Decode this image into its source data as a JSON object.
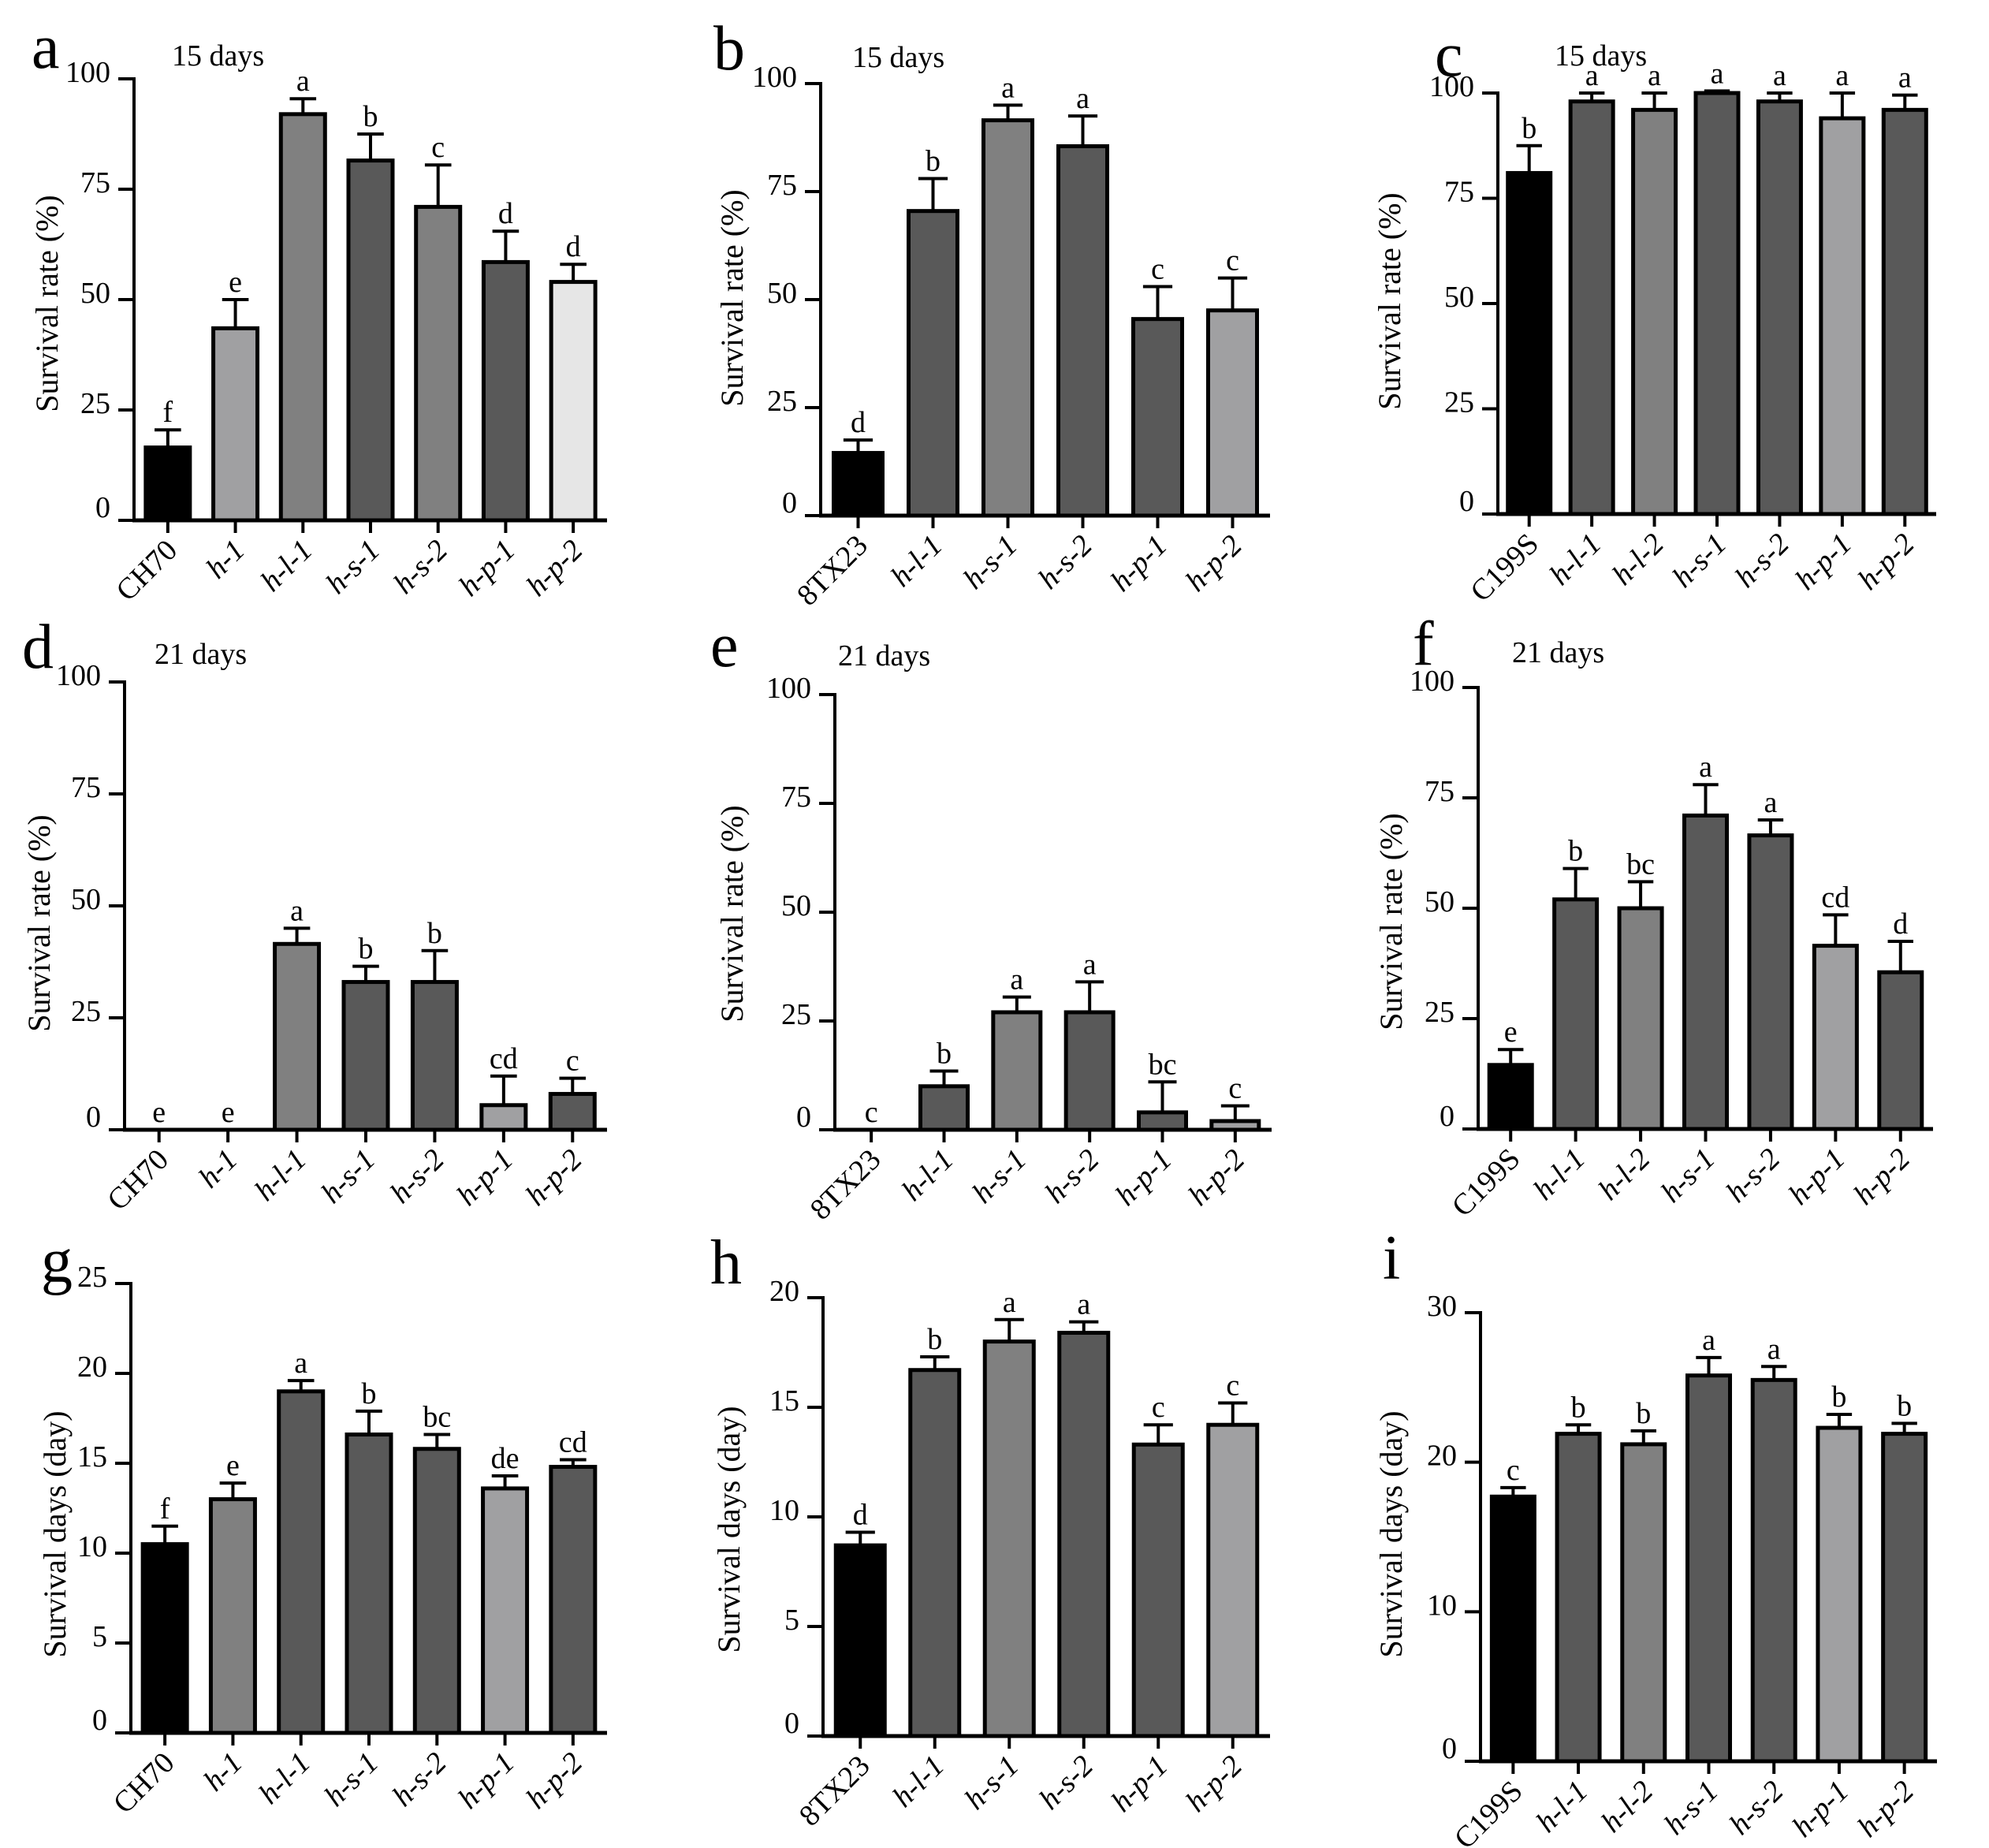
{
  "figure": {
    "panels": [
      {
        "letter": "a",
        "title": "15 days",
        "ylabel": "Survival rate (%)"
      },
      {
        "letter": "b",
        "title": "15 days",
        "ylabel": "Survival rate (%)"
      },
      {
        "letter": "c",
        "title": "15 days",
        "ylabel": "Survival rate (%)"
      },
      {
        "letter": "d",
        "title": "21 days",
        "ylabel": "Survival rate  (%)"
      },
      {
        "letter": "e",
        "title": "21 days",
        "ylabel": "Survival rate (%)"
      },
      {
        "letter": "f",
        "title": "21 days",
        "ylabel": "Survival rate (%)"
      },
      {
        "letter": "g",
        "title": "",
        "ylabel": "Survival days (day)"
      },
      {
        "letter": "h",
        "title": "",
        "ylabel": "Survival days (day)"
      },
      {
        "letter": "i",
        "title": "",
        "ylabel": "Survival days (day)"
      }
    ]
  },
  "colors": {
    "black": "#000000",
    "dark": "#595959",
    "mid": "#808080",
    "light": "#a0a0a2",
    "pale": "#e6e6e6"
  },
  "chart_data": [
    {
      "type": "bar",
      "title": "15 days",
      "ylabel": "Survival rate (%)",
      "ylim": [
        0,
        100
      ],
      "yticks": [
        0,
        25,
        50,
        75,
        100
      ],
      "categories": [
        "CH70",
        "h-1",
        "h-l-1",
        "h-s-1",
        "h-s-2",
        "h-p-1",
        "h-p-2"
      ],
      "values": [
        16.5,
        43.5,
        92,
        81.5,
        71,
        58.5,
        54
      ],
      "errors": [
        4,
        6.5,
        3.5,
        6,
        9.5,
        7,
        4
      ],
      "letters": [
        "f",
        "e",
        "a",
        "b",
        "c",
        "d",
        "d"
      ],
      "fills": [
        "black",
        "light",
        "mid",
        "dark",
        "mid",
        "dark",
        "pale"
      ]
    },
    {
      "type": "bar",
      "title": "15 days",
      "ylabel": "Survival rate (%)",
      "ylim": [
        0,
        100
      ],
      "yticks": [
        0,
        25,
        50,
        75,
        100
      ],
      "categories": [
        "8TX23",
        "h-l-1",
        "h-s-1",
        "h-s-2",
        "h-p-1",
        "h-p-2"
      ],
      "values": [
        14.5,
        70.5,
        91.5,
        85.5,
        45.5,
        47.5
      ],
      "errors": [
        3,
        7.5,
        3.5,
        7,
        7.5,
        7.5
      ],
      "letters": [
        "d",
        "b",
        "a",
        "a",
        "c",
        "c"
      ],
      "fills": [
        "black",
        "dark",
        "mid",
        "dark",
        "dark",
        "light"
      ]
    },
    {
      "type": "bar",
      "title": "15 days",
      "ylabel": "Survival rate (%)",
      "ylim": [
        0,
        100
      ],
      "yticks": [
        0,
        25,
        50,
        75,
        100
      ],
      "categories": [
        "C199S",
        "h-l-1",
        "h-l-2",
        "h-s-1",
        "h-s-2",
        "h-p-1",
        "h-p-2"
      ],
      "values": [
        81,
        98,
        96,
        100,
        98,
        94,
        96
      ],
      "errors": [
        6.5,
        2,
        4,
        0.5,
        2,
        6,
        3.5
      ],
      "letters": [
        "b",
        "a",
        "a",
        "a",
        "a",
        "a",
        "a"
      ],
      "fills": [
        "black",
        "dark",
        "mid",
        "dark",
        "dark",
        "light",
        "dark"
      ]
    },
    {
      "type": "bar",
      "title": "21 days",
      "ylabel": "Survival rate  (%)",
      "ylim": [
        0,
        100
      ],
      "yticks": [
        0,
        25,
        50,
        75,
        100
      ],
      "categories": [
        "CH70",
        "h-1",
        "h-l-1",
        "h-s-1",
        "h-s-2",
        "h-p-1",
        "h-p-2"
      ],
      "values": [
        0,
        0,
        41.5,
        33,
        33,
        5.5,
        8
      ],
      "errors": [
        0,
        0,
        3.5,
        3.5,
        7,
        6.5,
        3.5
      ],
      "letters": [
        "e",
        "e",
        "a",
        "b",
        "b",
        "cd",
        "c"
      ],
      "fills": [
        "black",
        "light",
        "mid",
        "dark",
        "dark",
        "light",
        "dark"
      ]
    },
    {
      "type": "bar",
      "title": "21 days",
      "ylabel": "Survival rate (%)",
      "ylim": [
        0,
        100
      ],
      "yticks": [
        0,
        25,
        50,
        75,
        100
      ],
      "categories": [
        "8TX23",
        "h-l-1",
        "h-s-1",
        "h-s-2",
        "h-p-1",
        "h-p-2"
      ],
      "values": [
        0,
        10,
        27,
        27,
        4,
        2
      ],
      "errors": [
        0,
        3.5,
        3.5,
        7,
        7,
        3.5
      ],
      "letters": [
        "c",
        "b",
        "a",
        "a",
        "bc",
        "c"
      ],
      "fills": [
        "black",
        "dark",
        "mid",
        "dark",
        "dark",
        "light"
      ]
    },
    {
      "type": "bar",
      "title": "21 days",
      "ylabel": "Survival rate (%)",
      "ylim": [
        0,
        100
      ],
      "yticks": [
        0,
        25,
        50,
        75,
        100
      ],
      "categories": [
        "C199S",
        "h-l-1",
        "h-l-2",
        "h-s-1",
        "h-s-2",
        "h-p-1",
        "h-p-2"
      ],
      "values": [
        14.5,
        52,
        50,
        71,
        66.5,
        41.5,
        35.5
      ],
      "errors": [
        3.5,
        7,
        6,
        7,
        3.5,
        7,
        7
      ],
      "letters": [
        "e",
        "b",
        "bc",
        "a",
        "a",
        "cd",
        "d"
      ],
      "fills": [
        "black",
        "dark",
        "mid",
        "dark",
        "dark",
        "light",
        "dark"
      ]
    },
    {
      "type": "bar",
      "title": "",
      "ylabel": "Survival days (day)",
      "ylim": [
        0,
        25
      ],
      "yticks": [
        0,
        5,
        10,
        15,
        20,
        25
      ],
      "categories": [
        "CH70",
        "h-1",
        "h-l-1",
        "h-s-1",
        "h-s-2",
        "h-p-1",
        "h-p-2"
      ],
      "values": [
        10.5,
        13,
        19,
        16.6,
        15.8,
        13.6,
        14.8
      ],
      "errors": [
        1,
        0.9,
        0.6,
        1.3,
        0.8,
        0.7,
        0.4
      ],
      "letters": [
        "f",
        "e",
        "a",
        "b",
        "bc",
        "de",
        "cd"
      ],
      "fills": [
        "black",
        "mid",
        "dark",
        "dark",
        "dark",
        "light",
        "dark"
      ]
    },
    {
      "type": "bar",
      "title": "",
      "ylabel": "Survival days (day)",
      "ylim": [
        0,
        20
      ],
      "yticks": [
        0,
        5,
        10,
        15,
        20
      ],
      "categories": [
        "8TX23",
        "h-l-1",
        "h-s-1",
        "h-s-2",
        "h-p-1",
        "h-p-2"
      ],
      "values": [
        8.7,
        16.7,
        18,
        18.4,
        13.3,
        14.2
      ],
      "errors": [
        0.6,
        0.6,
        1,
        0.5,
        0.9,
        1
      ],
      "letters": [
        "d",
        "b",
        "a",
        "a",
        "c",
        "c"
      ],
      "fills": [
        "black",
        "dark",
        "mid",
        "dark",
        "dark",
        "light"
      ]
    },
    {
      "type": "bar",
      "title": "",
      "ylabel": "Survival days (day)",
      "ylim": [
        0,
        30
      ],
      "yticks": [
        0,
        10,
        20,
        30
      ],
      "categories": [
        "C199S",
        "h-l-1",
        "h-l-2",
        "h-s-1",
        "h-s-2",
        "h-p-1",
        "h-p-2"
      ],
      "values": [
        17.7,
        21.9,
        21.2,
        25.8,
        25.5,
        22.3,
        21.9
      ],
      "errors": [
        0.6,
        0.6,
        0.9,
        1.2,
        0.9,
        0.9,
        0.7
      ],
      "letters": [
        "c",
        "b",
        "b",
        "a",
        "a",
        "b",
        "b"
      ],
      "fills": [
        "black",
        "dark",
        "mid",
        "dark",
        "dark",
        "light",
        "dark"
      ]
    }
  ]
}
